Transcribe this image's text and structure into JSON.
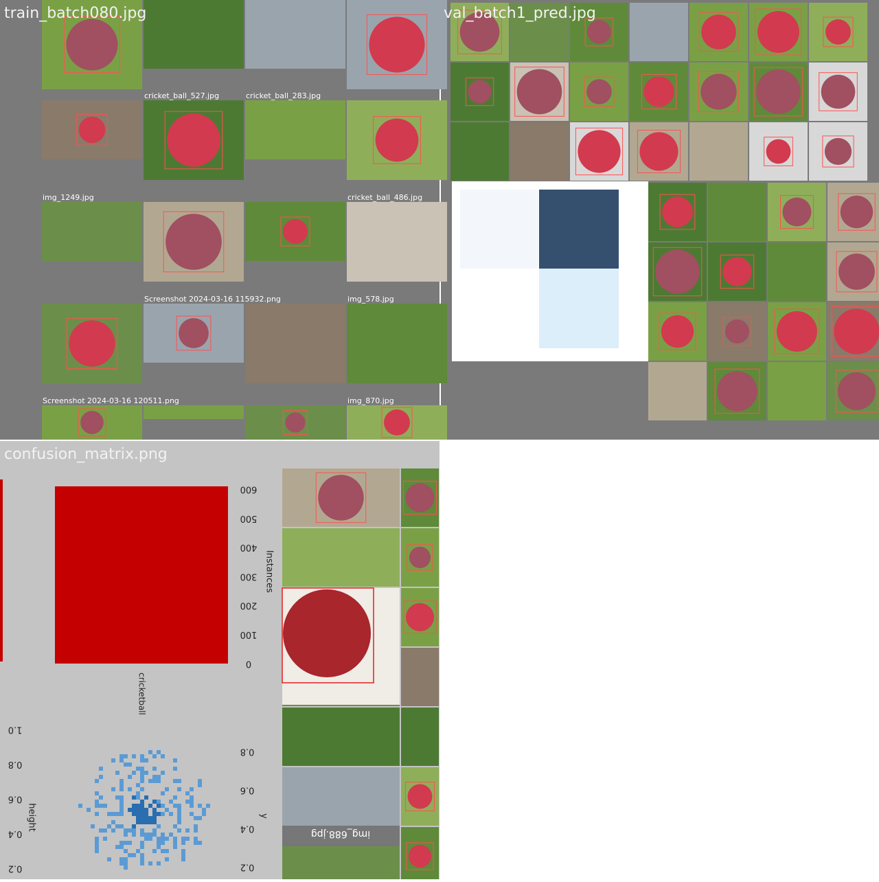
{
  "panels": [
    {
      "title": "train_batch080.jpg",
      "captions": [
        "cricket_ball_527.jpg",
        "cricket_ball_283.jpg",
        "img_1249.jpg",
        "cricket_ball_486.jpg",
        "Screenshot 2024-03-16 115932.png",
        "img_578.jpg",
        "Screenshot 2024-03-16 120511.png",
        "img_870.jpg"
      ]
    },
    {
      "title": "val_batch1_pred.jpg"
    },
    {
      "title": "confusion_matrix.png",
      "bar_ticks": [
        "600",
        "500",
        "400",
        "300",
        "200",
        "100",
        "0"
      ],
      "bar_axis": "Instances",
      "bar_category": "cricketball",
      "left_ticks": [
        "1.0",
        "0.8",
        "0.6",
        "0.4",
        "0.2"
      ],
      "left_axis": "height",
      "right_ticks": [
        "0.8",
        "0.6",
        "0.4",
        "0.2"
      ],
      "right_axis": "y",
      "tile_caption": "img_688.jpg"
    }
  ]
}
